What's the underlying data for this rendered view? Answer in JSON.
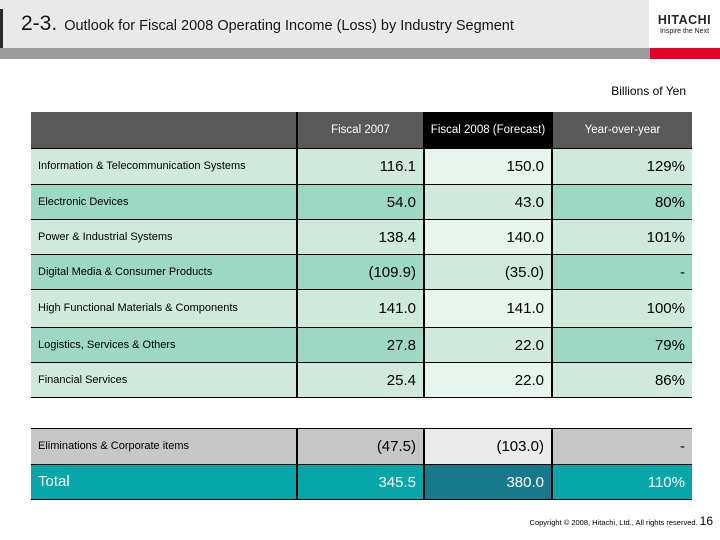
{
  "slide": {
    "section_number": "2-3.",
    "title": "Outlook for Fiscal 2008 Operating Income (Loss) by Industry Segment",
    "units_label": "Billions of Yen",
    "footer": {
      "copyright": "Copyright © 2008, Hitachi, Ltd., All rights reserved.",
      "page_number": "16"
    }
  },
  "logo": {
    "brand": "HITACHI",
    "tagline": "Inspire the Next"
  },
  "colors": {
    "hitachi_red": "#e60027",
    "header_gray": "#595959",
    "header_black": "#000000",
    "row_light_green": "#cfe9dd",
    "row_medium_green": "#9dd8c4",
    "forecast_cell_light": "#e8f5ee",
    "eliminations_gray": "#c7c7c7",
    "eliminations_forecast_gray": "#ebebeb",
    "total_teal": "#07a7a9",
    "total_forecast_teal": "#17798c",
    "divider_gray": "#9c9c9c",
    "title_band_gray": "#e9e9e9"
  },
  "chart_data": {
    "type": "table",
    "title": "Outlook for Fiscal 2008 Operating Income (Loss) by Industry Segment",
    "units": "Billions of Yen",
    "headers": [
      "",
      "Fiscal 2007",
      "Fiscal 2008 (Forecast)",
      "Year-over-year"
    ],
    "rows": [
      {
        "label": "Information & Telecommunication Systems",
        "fiscal_2007": "116.1",
        "fiscal_2008": "150.0",
        "yoy": "129%",
        "shade": "light"
      },
      {
        "label": "Electronic Devices",
        "fiscal_2007": "54.0",
        "fiscal_2008": "43.0",
        "yoy": "80%",
        "shade": "medium"
      },
      {
        "label": "Power & Industrial Systems",
        "fiscal_2007": "138.4",
        "fiscal_2008": "140.0",
        "yoy": "101%",
        "shade": "light"
      },
      {
        "label": "Digital Media & Consumer Products",
        "fiscal_2007": "(109.9)",
        "fiscal_2008": "(35.0)",
        "yoy": "-",
        "shade": "medium"
      },
      {
        "label": "High Functional Materials & Components",
        "fiscal_2007": "141.0",
        "fiscal_2008": "141.0",
        "yoy": "100%",
        "shade": "light"
      },
      {
        "label": "Logistics, Services & Others",
        "fiscal_2007": "27.8",
        "fiscal_2008": "22.0",
        "yoy": "79%",
        "shade": "medium"
      },
      {
        "label": "Financial Services",
        "fiscal_2007": "25.4",
        "fiscal_2008": "22.0",
        "yoy": "86%",
        "shade": "light"
      }
    ],
    "eliminations": {
      "label": "Eliminations & Corporate items",
      "fiscal_2007": "(47.5)",
      "fiscal_2008": "(103.0)",
      "yoy": "-",
      "shade": "gray"
    },
    "total": {
      "label": "Total",
      "fiscal_2007": "345.5",
      "fiscal_2008": "380.0",
      "yoy": "110%",
      "shade": "total-row"
    }
  }
}
